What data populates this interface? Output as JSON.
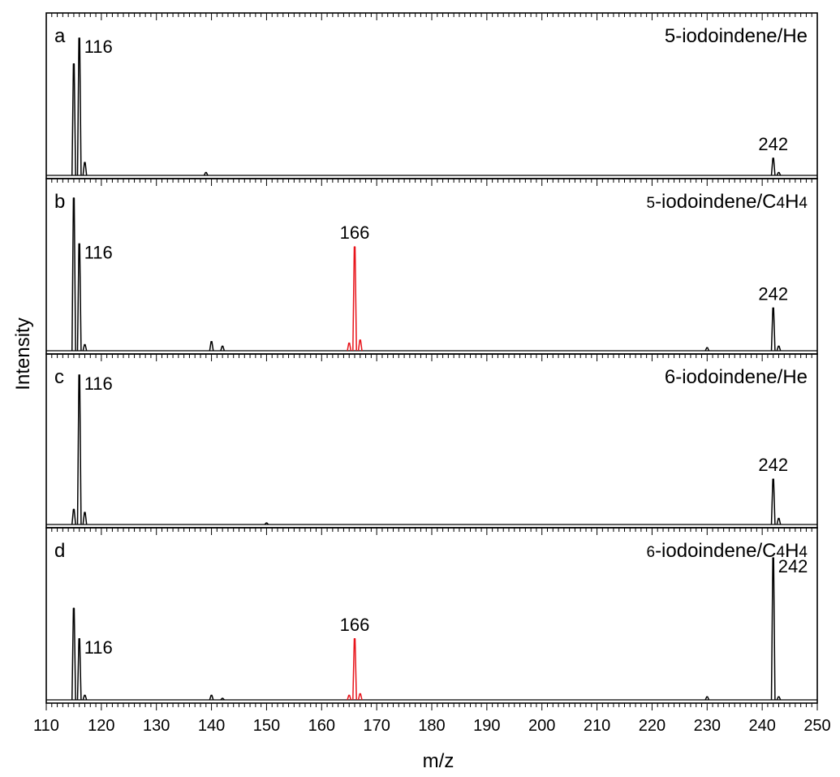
{
  "chart_data": {
    "type": "line",
    "xlabel": "m/z",
    "ylabel": "Intensity",
    "xlim": [
      110,
      250
    ],
    "xticks": [
      110,
      120,
      130,
      140,
      150,
      160,
      170,
      180,
      190,
      200,
      210,
      220,
      230,
      240,
      250
    ],
    "colors": {
      "trace": "#000000",
      "highlight": "#e8141b"
    },
    "panels": [
      {
        "letter": "a",
        "label": "5-iodoindene/He",
        "peaks": [
          {
            "x": 115,
            "y": 0.78
          },
          {
            "x": 116,
            "y": 0.96
          },
          {
            "x": 117,
            "y": 0.09
          },
          {
            "x": 139,
            "y": 0.02
          },
          {
            "x": 242,
            "y": 0.12
          },
          {
            "x": 243,
            "y": 0.02
          }
        ],
        "annotations": [
          {
            "x": 116,
            "text": "116",
            "y": 0.96,
            "offset": "right"
          },
          {
            "x": 242,
            "text": "242",
            "y": 0.12,
            "offset": "above"
          }
        ]
      },
      {
        "letter": "b",
        "label": "5-iodoindene/C4H4",
        "peaks": [
          {
            "x": 115,
            "y": 1.0
          },
          {
            "x": 116,
            "y": 0.7
          },
          {
            "x": 117,
            "y": 0.04
          },
          {
            "x": 140,
            "y": 0.06
          },
          {
            "x": 142,
            "y": 0.03
          },
          {
            "x": 165,
            "y": 0.05,
            "highlight": true
          },
          {
            "x": 166,
            "y": 0.68,
            "highlight": true
          },
          {
            "x": 167,
            "y": 0.07,
            "highlight": true
          },
          {
            "x": 230,
            "y": 0.02
          },
          {
            "x": 242,
            "y": 0.28
          },
          {
            "x": 243,
            "y": 0.03
          }
        ],
        "annotations": [
          {
            "x": 116,
            "text": "116",
            "y": 0.7,
            "offset": "right"
          },
          {
            "x": 166,
            "text": "166",
            "y": 0.68,
            "offset": "above"
          },
          {
            "x": 242,
            "text": "242",
            "y": 0.28,
            "offset": "above"
          }
        ]
      },
      {
        "letter": "c",
        "label": "6-iodoindene/He",
        "peaks": [
          {
            "x": 115,
            "y": 0.1
          },
          {
            "x": 116,
            "y": 0.99
          },
          {
            "x": 117,
            "y": 0.08
          },
          {
            "x": 150,
            "y": 0.01
          },
          {
            "x": 242,
            "y": 0.3
          },
          {
            "x": 243,
            "y": 0.04
          }
        ],
        "annotations": [
          {
            "x": 116,
            "text": "116",
            "y": 0.99,
            "offset": "right"
          },
          {
            "x": 242,
            "text": "242",
            "y": 0.3,
            "offset": "above"
          }
        ]
      },
      {
        "letter": "d",
        "label": "6-iodoindene/C4H4",
        "peaks": [
          {
            "x": 115,
            "y": 0.6
          },
          {
            "x": 116,
            "y": 0.4
          },
          {
            "x": 117,
            "y": 0.03
          },
          {
            "x": 140,
            "y": 0.03
          },
          {
            "x": 142,
            "y": 0.01
          },
          {
            "x": 165,
            "y": 0.03,
            "highlight": true
          },
          {
            "x": 166,
            "y": 0.4,
            "highlight": true
          },
          {
            "x": 167,
            "y": 0.04,
            "highlight": true
          },
          {
            "x": 230,
            "y": 0.02
          },
          {
            "x": 242,
            "y": 0.93
          },
          {
            "x": 243,
            "y": 0.02
          }
        ],
        "annotations": [
          {
            "x": 116,
            "text": "116",
            "y": 0.4,
            "offset": "right"
          },
          {
            "x": 166,
            "text": "166",
            "y": 0.4,
            "offset": "above"
          },
          {
            "x": 242,
            "text": "242",
            "y": 0.93,
            "offset": "right"
          }
        ]
      }
    ]
  }
}
